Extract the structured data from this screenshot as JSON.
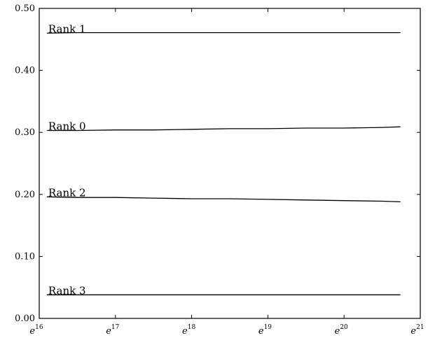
{
  "chart_data": {
    "type": "line",
    "title": "",
    "xlabel": "",
    "ylabel": "",
    "x_scale": "log (natural)",
    "xlim_exponent": [
      16,
      21
    ],
    "ylim": [
      0.0,
      0.5
    ],
    "x_ticks": [
      {
        "base": "e",
        "exp": "16"
      },
      {
        "base": "e",
        "exp": "17"
      },
      {
        "base": "e",
        "exp": "18"
      },
      {
        "base": "e",
        "exp": "19"
      },
      {
        "base": "e",
        "exp": "20"
      },
      {
        "base": "e",
        "exp": "21"
      }
    ],
    "y_ticks": [
      "0.00",
      "0.10",
      "0.20",
      "0.30",
      "0.40",
      "0.50"
    ],
    "y_tick_values": [
      0.0,
      0.1,
      0.2,
      0.3,
      0.4,
      0.5
    ],
    "grid": false,
    "legend": "none (series labeled inline at left)",
    "x_exponents": [
      16.1,
      16.5,
      17.0,
      17.5,
      18.0,
      18.5,
      19.0,
      19.5,
      20.0,
      20.5,
      20.74
    ],
    "series": [
      {
        "name": "Rank 1",
        "values": [
          0.46,
          0.461,
          0.461,
          0.461,
          0.461,
          0.461,
          0.461,
          0.461,
          0.461,
          0.461,
          0.461
        ]
      },
      {
        "name": "Rank 0",
        "values": [
          0.303,
          0.303,
          0.304,
          0.304,
          0.305,
          0.306,
          0.306,
          0.307,
          0.307,
          0.308,
          0.309
        ]
      },
      {
        "name": "Rank 2",
        "values": [
          0.196,
          0.195,
          0.195,
          0.194,
          0.193,
          0.193,
          0.192,
          0.191,
          0.19,
          0.189,
          0.188
        ]
      },
      {
        "name": "Rank 3",
        "values": [
          0.038,
          0.038,
          0.038,
          0.038,
          0.038,
          0.038,
          0.038,
          0.038,
          0.038,
          0.038,
          0.038
        ]
      }
    ]
  }
}
